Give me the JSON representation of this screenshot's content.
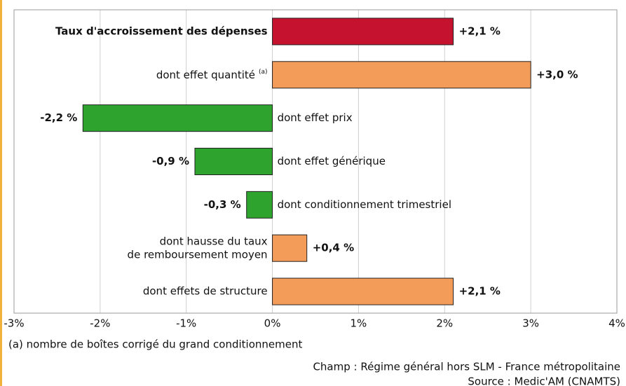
{
  "chart_data": {
    "type": "bar",
    "orientation": "horizontal",
    "categories": [
      "Taux d'accroissement des dépenses",
      "dont effet quantité",
      "dont effet prix",
      "dont effet générique",
      "dont conditionnement trimestriel",
      "dont hausse du taux\nde remboursement moyen",
      "dont effets de structure"
    ],
    "category_superscripts": [
      null,
      "(a)",
      null,
      null,
      null,
      null,
      null
    ],
    "bold": [
      true,
      false,
      false,
      false,
      false,
      false,
      false
    ],
    "values": [
      2.1,
      3.0,
      -2.2,
      -0.9,
      -0.3,
      0.4,
      2.1
    ],
    "value_labels": [
      "+2,1 %",
      "+3,0 %",
      "-2,2 %",
      "-0,9 %",
      "-0,3 %",
      "+0,4 %",
      "+2,1 %"
    ],
    "colors": [
      "#c4122f",
      "#f39c5a",
      "#2ea32e",
      "#2ea32e",
      "#2ea32e",
      "#f39c5a",
      "#f39c5a"
    ],
    "xlim": [
      -3,
      4
    ],
    "xticks": [
      {
        "value": -3,
        "label": "-3%"
      },
      {
        "value": -2,
        "label": "-2%"
      },
      {
        "value": -1,
        "label": "-1%"
      },
      {
        "value": 0,
        "label": "0%"
      },
      {
        "value": 1,
        "label": "1%"
      },
      {
        "value": 2,
        "label": "2%"
      },
      {
        "value": 3,
        "label": "3%"
      },
      {
        "value": 4,
        "label": "4%"
      }
    ],
    "grid": true,
    "footnote": "(a) nombre de boîtes corrigé du grand conditionnement",
    "scope": "Champ : Régime général hors SLM - France métropolitaine",
    "source": "Source : Medic'AM (CNAMTS)"
  }
}
